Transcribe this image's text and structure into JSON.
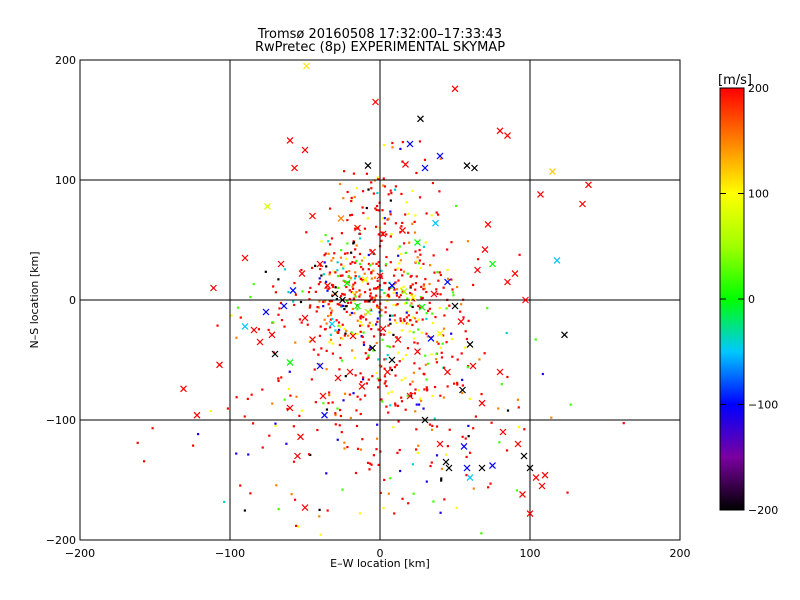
{
  "chart_data": {
    "type": "scatter",
    "title": "Tromsø 20160508 17:32:00–17:33:43",
    "subtitle": "RwPretec (8p) EXPERIMENTAL SKYMAP",
    "xlabel": "E–W location [km]",
    "ylabel": "N–S location [km]",
    "xlim": [
      -200,
      200
    ],
    "ylim": [
      -200,
      200
    ],
    "xticks": [
      -200,
      -100,
      0,
      100,
      200
    ],
    "yticks": [
      -200,
      -100,
      0,
      100,
      200
    ],
    "xtick_labels": [
      "−200",
      "−100",
      "0",
      "100",
      "200"
    ],
    "ytick_labels": [
      "−200",
      "−100",
      "0",
      "100",
      "200"
    ],
    "grid_lines": [
      -100,
      0,
      100
    ],
    "marker_types": [
      "small dot",
      "x"
    ],
    "colorbar": {
      "label": "[m/s]",
      "range": [
        -200,
        200
      ],
      "ticks": [
        200,
        100,
        0,
        -100,
        -200
      ],
      "tick_labels": [
        "200",
        "100",
        "0",
        "−100",
        "−200"
      ],
      "colormap": [
        {
          "value": -200,
          "color": "#000000"
        },
        {
          "value": -150,
          "color": "#7a00a0"
        },
        {
          "value": -100,
          "color": "#0000ff"
        },
        {
          "value": -50,
          "color": "#00c8ff"
        },
        {
          "value": 0,
          "color": "#00ff00"
        },
        {
          "value": 50,
          "color": "#a0ff00"
        },
        {
          "value": 100,
          "color": "#ffff00"
        },
        {
          "value": 150,
          "color": "#ff8000"
        },
        {
          "value": 200,
          "color": "#ff0000"
        }
      ]
    },
    "points_x": [
      {
        "x": -3,
        "y": 165,
        "v": 200
      },
      {
        "x": 27,
        "y": 151,
        "v": -200
      },
      {
        "x": 50,
        "y": 176,
        "v": 200
      },
      {
        "x": 80,
        "y": 141,
        "v": 200
      },
      {
        "x": 85,
        "y": 137,
        "v": 200
      },
      {
        "x": -60,
        "y": 133,
        "v": 200
      },
      {
        "x": -50,
        "y": 125,
        "v": 200
      },
      {
        "x": -49,
        "y": 195,
        "v": 110
      },
      {
        "x": 20,
        "y": 130,
        "v": -100
      },
      {
        "x": 40,
        "y": 120,
        "v": -100
      },
      {
        "x": 58,
        "y": 112,
        "v": -200
      },
      {
        "x": 63,
        "y": 110,
        "v": -200
      },
      {
        "x": 17,
        "y": 113,
        "v": 200
      },
      {
        "x": -8,
        "y": 112,
        "v": -200
      },
      {
        "x": 30,
        "y": 110,
        "v": -100
      },
      {
        "x": 115,
        "y": 107,
        "v": 120
      },
      {
        "x": 139,
        "y": 96,
        "v": 200
      },
      {
        "x": 135,
        "y": 80,
        "v": 200
      },
      {
        "x": -57,
        "y": 110,
        "v": 200
      },
      {
        "x": -75,
        "y": 78,
        "v": 80
      },
      {
        "x": -45,
        "y": 70,
        "v": 200
      },
      {
        "x": -26,
        "y": 68,
        "v": 150
      },
      {
        "x": 37,
        "y": 64,
        "v": -50
      },
      {
        "x": 72,
        "y": 63,
        "v": 200
      },
      {
        "x": 107,
        "y": 88,
        "v": 200
      },
      {
        "x": 118,
        "y": 33,
        "v": -50
      },
      {
        "x": 97,
        "y": 0,
        "v": 200
      },
      {
        "x": 123,
        "y": -29,
        "v": -200
      },
      {
        "x": -111,
        "y": 10,
        "v": 200
      },
      {
        "x": -122,
        "y": -96,
        "v": 200
      },
      {
        "x": -131,
        "y": -74,
        "v": 200
      },
      {
        "x": -107,
        "y": -54,
        "v": 200
      },
      {
        "x": -90,
        "y": 35,
        "v": 200
      },
      {
        "x": -72,
        "y": -29,
        "v": 200
      },
      {
        "x": -80,
        "y": -35,
        "v": 200
      },
      {
        "x": -90,
        "y": -22,
        "v": -50
      },
      {
        "x": -60,
        "y": -90,
        "v": 200
      },
      {
        "x": -53,
        "y": -114,
        "v": 200
      },
      {
        "x": -55,
        "y": -130,
        "v": 200
      },
      {
        "x": -37,
        "y": -96,
        "v": -100
      },
      {
        "x": -60,
        "y": -52,
        "v": 0
      },
      {
        "x": -70,
        "y": -45,
        "v": -200
      },
      {
        "x": -45,
        "y": -33,
        "v": 200
      },
      {
        "x": -40,
        "y": -55,
        "v": -100
      },
      {
        "x": -20,
        "y": -60,
        "v": 200
      },
      {
        "x": 8,
        "y": -50,
        "v": -200
      },
      {
        "x": 20,
        "y": -80,
        "v": 200
      },
      {
        "x": 30,
        "y": -100,
        "v": -200
      },
      {
        "x": 40,
        "y": -120,
        "v": 200
      },
      {
        "x": 56,
        "y": -122,
        "v": -100
      },
      {
        "x": 44,
        "y": -135,
        "v": -200
      },
      {
        "x": 46,
        "y": -140,
        "v": -200
      },
      {
        "x": 58,
        "y": -140,
        "v": -100
      },
      {
        "x": 68,
        "y": -140,
        "v": -200
      },
      {
        "x": 75,
        "y": -138,
        "v": -100
      },
      {
        "x": 92,
        "y": -120,
        "v": 200
      },
      {
        "x": 96,
        "y": -130,
        "v": -200
      },
      {
        "x": 100,
        "y": -140,
        "v": -200
      },
      {
        "x": 104,
        "y": -148,
        "v": 200
      },
      {
        "x": 108,
        "y": -155,
        "v": 200
      },
      {
        "x": 110,
        "y": -146,
        "v": 200
      },
      {
        "x": 95,
        "y": -162,
        "v": 200
      },
      {
        "x": 100,
        "y": -178,
        "v": 200
      },
      {
        "x": 60,
        "y": -148,
        "v": -50
      },
      {
        "x": -50,
        "y": -173,
        "v": 200
      },
      {
        "x": 82,
        "y": -110,
        "v": 200
      },
      {
        "x": 62,
        "y": -55,
        "v": 200
      },
      {
        "x": 45,
        "y": -60,
        "v": 200
      },
      {
        "x": 60,
        "y": -37,
        "v": -200
      },
      {
        "x": 40,
        "y": -28,
        "v": 100
      },
      {
        "x": 34,
        "y": -32,
        "v": -100
      },
      {
        "x": 25,
        "y": -43,
        "v": 200
      },
      {
        "x": 12,
        "y": -33,
        "v": 200
      },
      {
        "x": 2,
        "y": -24,
        "v": 200
      },
      {
        "x": -8,
        "y": -10,
        "v": 50
      },
      {
        "x": -15,
        "y": -5,
        "v": 0
      },
      {
        "x": -25,
        "y": 0,
        "v": -200
      },
      {
        "x": -30,
        "y": 5,
        "v": -200
      },
      {
        "x": -35,
        "y": 12,
        "v": 200
      },
      {
        "x": -22,
        "y": 14,
        "v": 0
      },
      {
        "x": -10,
        "y": 17,
        "v": 100
      },
      {
        "x": 0,
        "y": 20,
        "v": 200
      },
      {
        "x": 8,
        "y": 12,
        "v": -100
      },
      {
        "x": 16,
        "y": 7,
        "v": 50
      },
      {
        "x": 22,
        "y": 2,
        "v": 100
      },
      {
        "x": 28,
        "y": -6,
        "v": 0
      },
      {
        "x": 36,
        "y": 5,
        "v": 200
      },
      {
        "x": 45,
        "y": 15,
        "v": -100
      },
      {
        "x": 50,
        "y": -5,
        "v": -200
      },
      {
        "x": 54,
        "y": -18,
        "v": 200
      },
      {
        "x": 65,
        "y": 25,
        "v": 200
      },
      {
        "x": 70,
        "y": 42,
        "v": 200
      },
      {
        "x": 75,
        "y": 30,
        "v": 0
      },
      {
        "x": 85,
        "y": 15,
        "v": 200
      },
      {
        "x": -5,
        "y": 40,
        "v": 200
      },
      {
        "x": 2,
        "y": 55,
        "v": 200
      },
      {
        "x": 15,
        "y": 58,
        "v": 200
      },
      {
        "x": 25,
        "y": 48,
        "v": 0
      },
      {
        "x": -15,
        "y": 60,
        "v": 200
      },
      {
        "x": -40,
        "y": 30,
        "v": 200
      },
      {
        "x": -52,
        "y": 22,
        "v": 200
      },
      {
        "x": -58,
        "y": 8,
        "v": -100
      },
      {
        "x": -64,
        "y": -5,
        "v": -100
      },
      {
        "x": -50,
        "y": -15,
        "v": 200
      },
      {
        "x": -32,
        "y": -20,
        "v": -50
      },
      {
        "x": -18,
        "y": -30,
        "v": 200
      },
      {
        "x": -5,
        "y": -40,
        "v": -200
      },
      {
        "x": 5,
        "y": -60,
        "v": 200
      },
      {
        "x": -12,
        "y": -72,
        "v": 200
      },
      {
        "x": -28,
        "y": -65,
        "v": 200
      },
      {
        "x": -66,
        "y": 30,
        "v": 200
      },
      {
        "x": -76,
        "y": -10,
        "v": -100
      },
      {
        "x": -84,
        "y": -25,
        "v": 200
      },
      {
        "x": -38,
        "y": -80,
        "v": 200
      },
      {
        "x": 90,
        "y": 22,
        "v": 200
      },
      {
        "x": 80,
        "y": -60,
        "v": 200
      },
      {
        "x": 55,
        "y": -75,
        "v": -200
      },
      {
        "x": 68,
        "y": -86,
        "v": 200
      }
    ]
  }
}
